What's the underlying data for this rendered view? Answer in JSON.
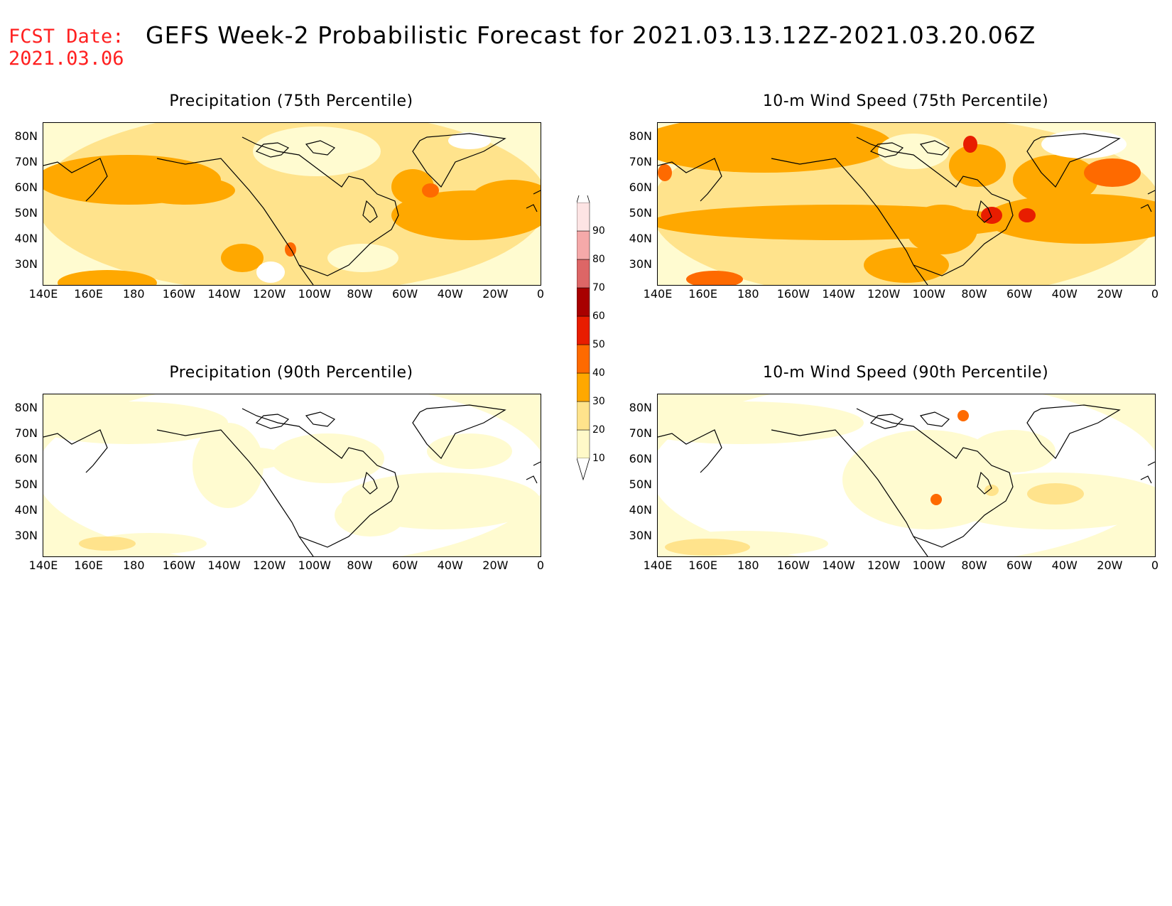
{
  "header": {
    "fcst_label": "FCST Date:",
    "fcst_date": "2021.03.06",
    "title": "GEFS Week-2 Probabilistic Forecast for 2021.03.13.12Z-2021.03.20.06Z"
  },
  "axes": {
    "lat_labels": [
      "80N",
      "70N",
      "60N",
      "50N",
      "40N",
      "30N"
    ],
    "lon_labels": [
      "140E",
      "160E",
      "180",
      "160W",
      "140W",
      "120W",
      "100W",
      "80W",
      "60W",
      "40W",
      "20W",
      "0"
    ]
  },
  "panels": [
    {
      "id": "precip75",
      "title": "Precipitation (75th Percentile)"
    },
    {
      "id": "wind75",
      "title": "10-m Wind Speed (75th Percentile)"
    },
    {
      "id": "precip90",
      "title": "Precipitation (90th Percentile)"
    },
    {
      "id": "wind90",
      "title": "10-m Wind Speed (90th Percentile)"
    }
  ],
  "colorbar": {
    "levels": [
      "10",
      "20",
      "30",
      "40",
      "50",
      "60",
      "70",
      "80",
      "90"
    ],
    "colors": [
      "#fff9c8",
      "#ffe38c",
      "#ffa800",
      "#fe6a00",
      "#e81d00",
      "#a80000",
      "#dd6666",
      "#f5a9a9",
      "#fde4e4"
    ]
  },
  "palette": {
    "bg_light": "#fffbd0",
    "yellow": "#ffe38c",
    "orange": "#ffa800",
    "deep_orange": "#fe6a00",
    "red": "#e81d00",
    "white": "#ffffff"
  }
}
